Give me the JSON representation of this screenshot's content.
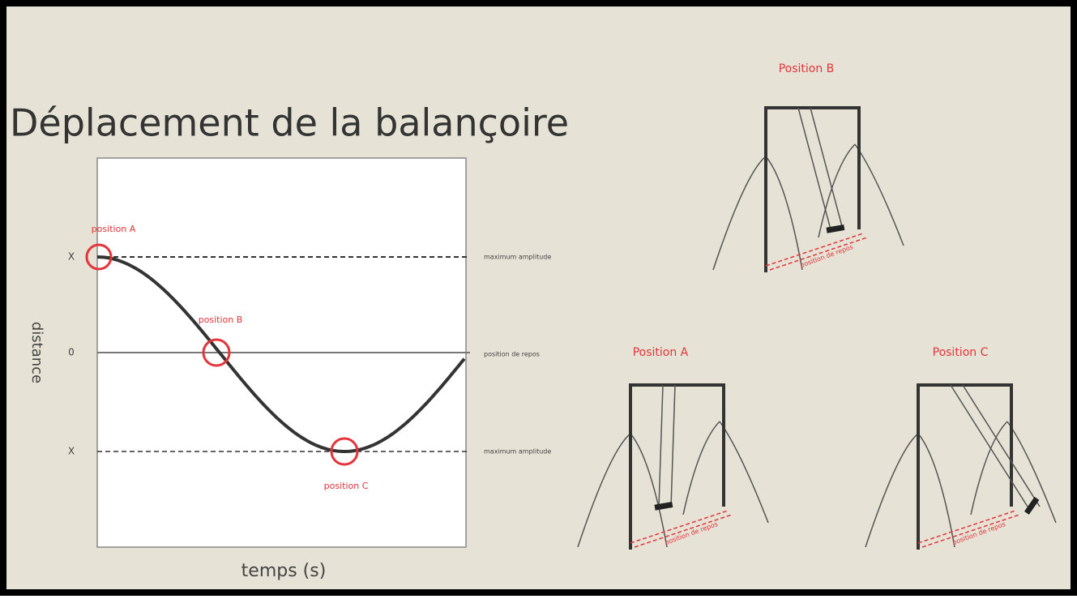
{
  "title": "Déplacement de la balançoire",
  "graph": {
    "x_label": "temps (s)",
    "y_label": "distance",
    "y_labels": [
      "X",
      "0",
      "X"
    ],
    "line_labels": [
      "maximum amplitude",
      "position de repos",
      "maximum amplitude"
    ],
    "points": [
      "position A",
      "position B",
      "position C"
    ]
  },
  "swings": [
    {
      "title": "Position B",
      "ground_label": "position de repos"
    },
    {
      "title": "Position A",
      "ground_label": "position de repos"
    },
    {
      "title": "Position C",
      "ground_label": "position de repos"
    }
  ]
}
